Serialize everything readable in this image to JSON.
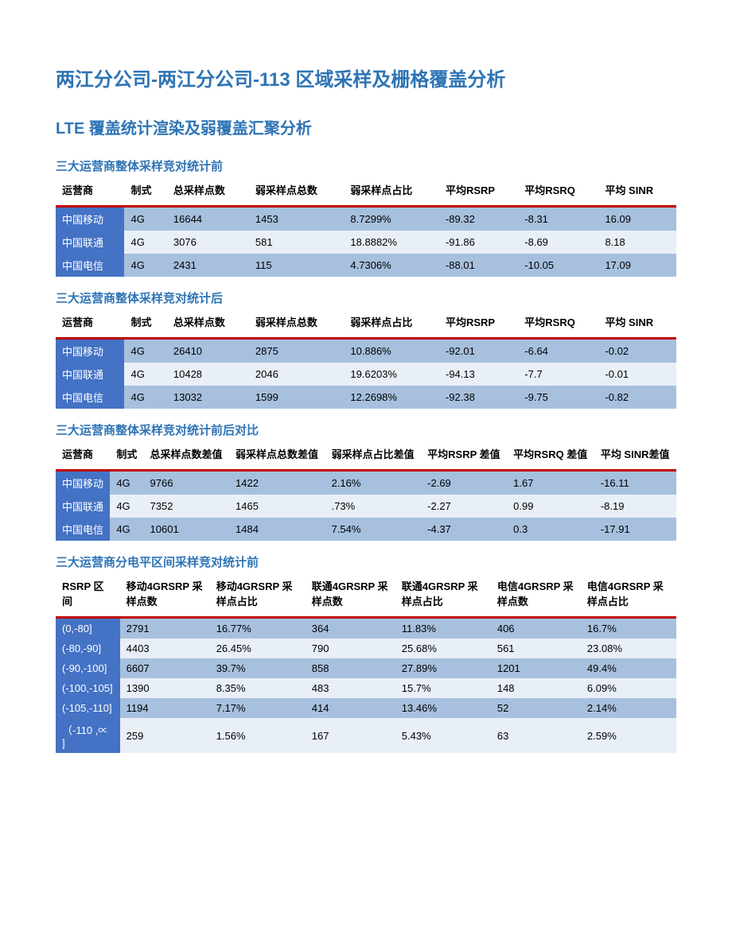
{
  "title": "两江分公司-两江分公司-113 区域采样及栅格覆盖分析",
  "section_title": "LTE 覆盖统计渲染及弱覆盖汇聚分析",
  "colors": {
    "heading": "#2e74b5",
    "header_border": "#c00000",
    "row_dark": "#a6c0de",
    "row_light": "#e9eff7",
    "first_col_bg": "#4472c4",
    "first_col_fg": "#ffffff",
    "body_text": "#000000"
  },
  "tables": {
    "before": {
      "title": "三大运营商整体采样竞对统计前",
      "columns": [
        "运营商",
        "制式",
        "总采样点数",
        "弱采样点总数",
        "弱采样点占比",
        "平均RSRP",
        "平均RSRQ",
        "平均 SINR"
      ],
      "rows": [
        [
          "中国移动",
          "4G",
          "16644",
          "1453",
          "8.7299%",
          "-89.32",
          "-8.31",
          "16.09"
        ],
        [
          "中国联通",
          "4G",
          "3076",
          "581",
          "18.8882%",
          "-91.86",
          "-8.69",
          "8.18"
        ],
        [
          "中国电信",
          "4G",
          "2431",
          "115",
          "4.7306%",
          "-88.01",
          "-10.05",
          "17.09"
        ]
      ]
    },
    "after": {
      "title": "三大运营商整体采样竞对统计后",
      "columns": [
        "运营商",
        "制式",
        "总采样点数",
        "弱采样点总数",
        "弱采样点占比",
        "平均RSRP",
        "平均RSRQ",
        "平均 SINR"
      ],
      "rows": [
        [
          "中国移动",
          "4G",
          "26410",
          "2875",
          "10.886%",
          "-92.01",
          "-6.64",
          "-0.02"
        ],
        [
          "中国联通",
          "4G",
          "10428",
          "2046",
          "19.6203%",
          "-94.13",
          "-7.7",
          "-0.01"
        ],
        [
          "中国电信",
          "4G",
          "13032",
          "1599",
          "12.2698%",
          "-92.38",
          "-9.75",
          "-0.82"
        ]
      ]
    },
    "diff": {
      "title": "三大运营商整体采样竞对统计前后对比",
      "columns": [
        "运营商",
        "制式",
        "总采样点数差值",
        "弱采样点总数差值",
        "弱采样点占比差值",
        "平均RSRP 差值",
        "平均RSRQ 差值",
        "平均 SINR差值"
      ],
      "rows": [
        [
          "中国移动",
          "4G",
          "9766",
          "1422",
          "2.16%",
          "-2.69",
          "1.67",
          "-16.11"
        ],
        [
          "中国联通",
          "4G",
          "7352",
          "1465",
          ".73%",
          "-2.27",
          "0.99",
          "-8.19"
        ],
        [
          "中国电信",
          "4G",
          "10601",
          "1484",
          "7.54%",
          "-4.37",
          "0.3",
          "-17.91"
        ]
      ]
    },
    "interval": {
      "title": "三大运营商分电平区间采样竞对统计前",
      "columns": [
        "RSRP 区间",
        "移动4GRSRP 采样点数",
        "移动4GRSRP 采样点占比",
        "联通4GRSRP 采样点数",
        "联通4GRSRP 采样点占比",
        "电信4GRSRP 采样点数",
        "电信4GRSRP 采样点占比"
      ],
      "rows": [
        [
          "(0,-80]",
          "2791",
          "16.77%",
          "364",
          "11.83%",
          "406",
          "16.7%"
        ],
        [
          "(-80,-90]",
          "4403",
          "26.45%",
          "790",
          "25.68%",
          "561",
          "23.08%"
        ],
        [
          "(-90,-100]",
          "6607",
          "39.7%",
          "858",
          "27.89%",
          "1201",
          "49.4%"
        ],
        [
          "(-100,-105]",
          "1390",
          "8.35%",
          "483",
          "15.7%",
          "148",
          "6.09%"
        ],
        [
          "(-105,-110]",
          "1194",
          "7.17%",
          "414",
          "13.46%",
          "52",
          "2.14%"
        ],
        [
          "（-110 ,∝ ]",
          "259",
          "1.56%",
          "167",
          "5.43%",
          "63",
          "2.59%"
        ]
      ]
    }
  }
}
